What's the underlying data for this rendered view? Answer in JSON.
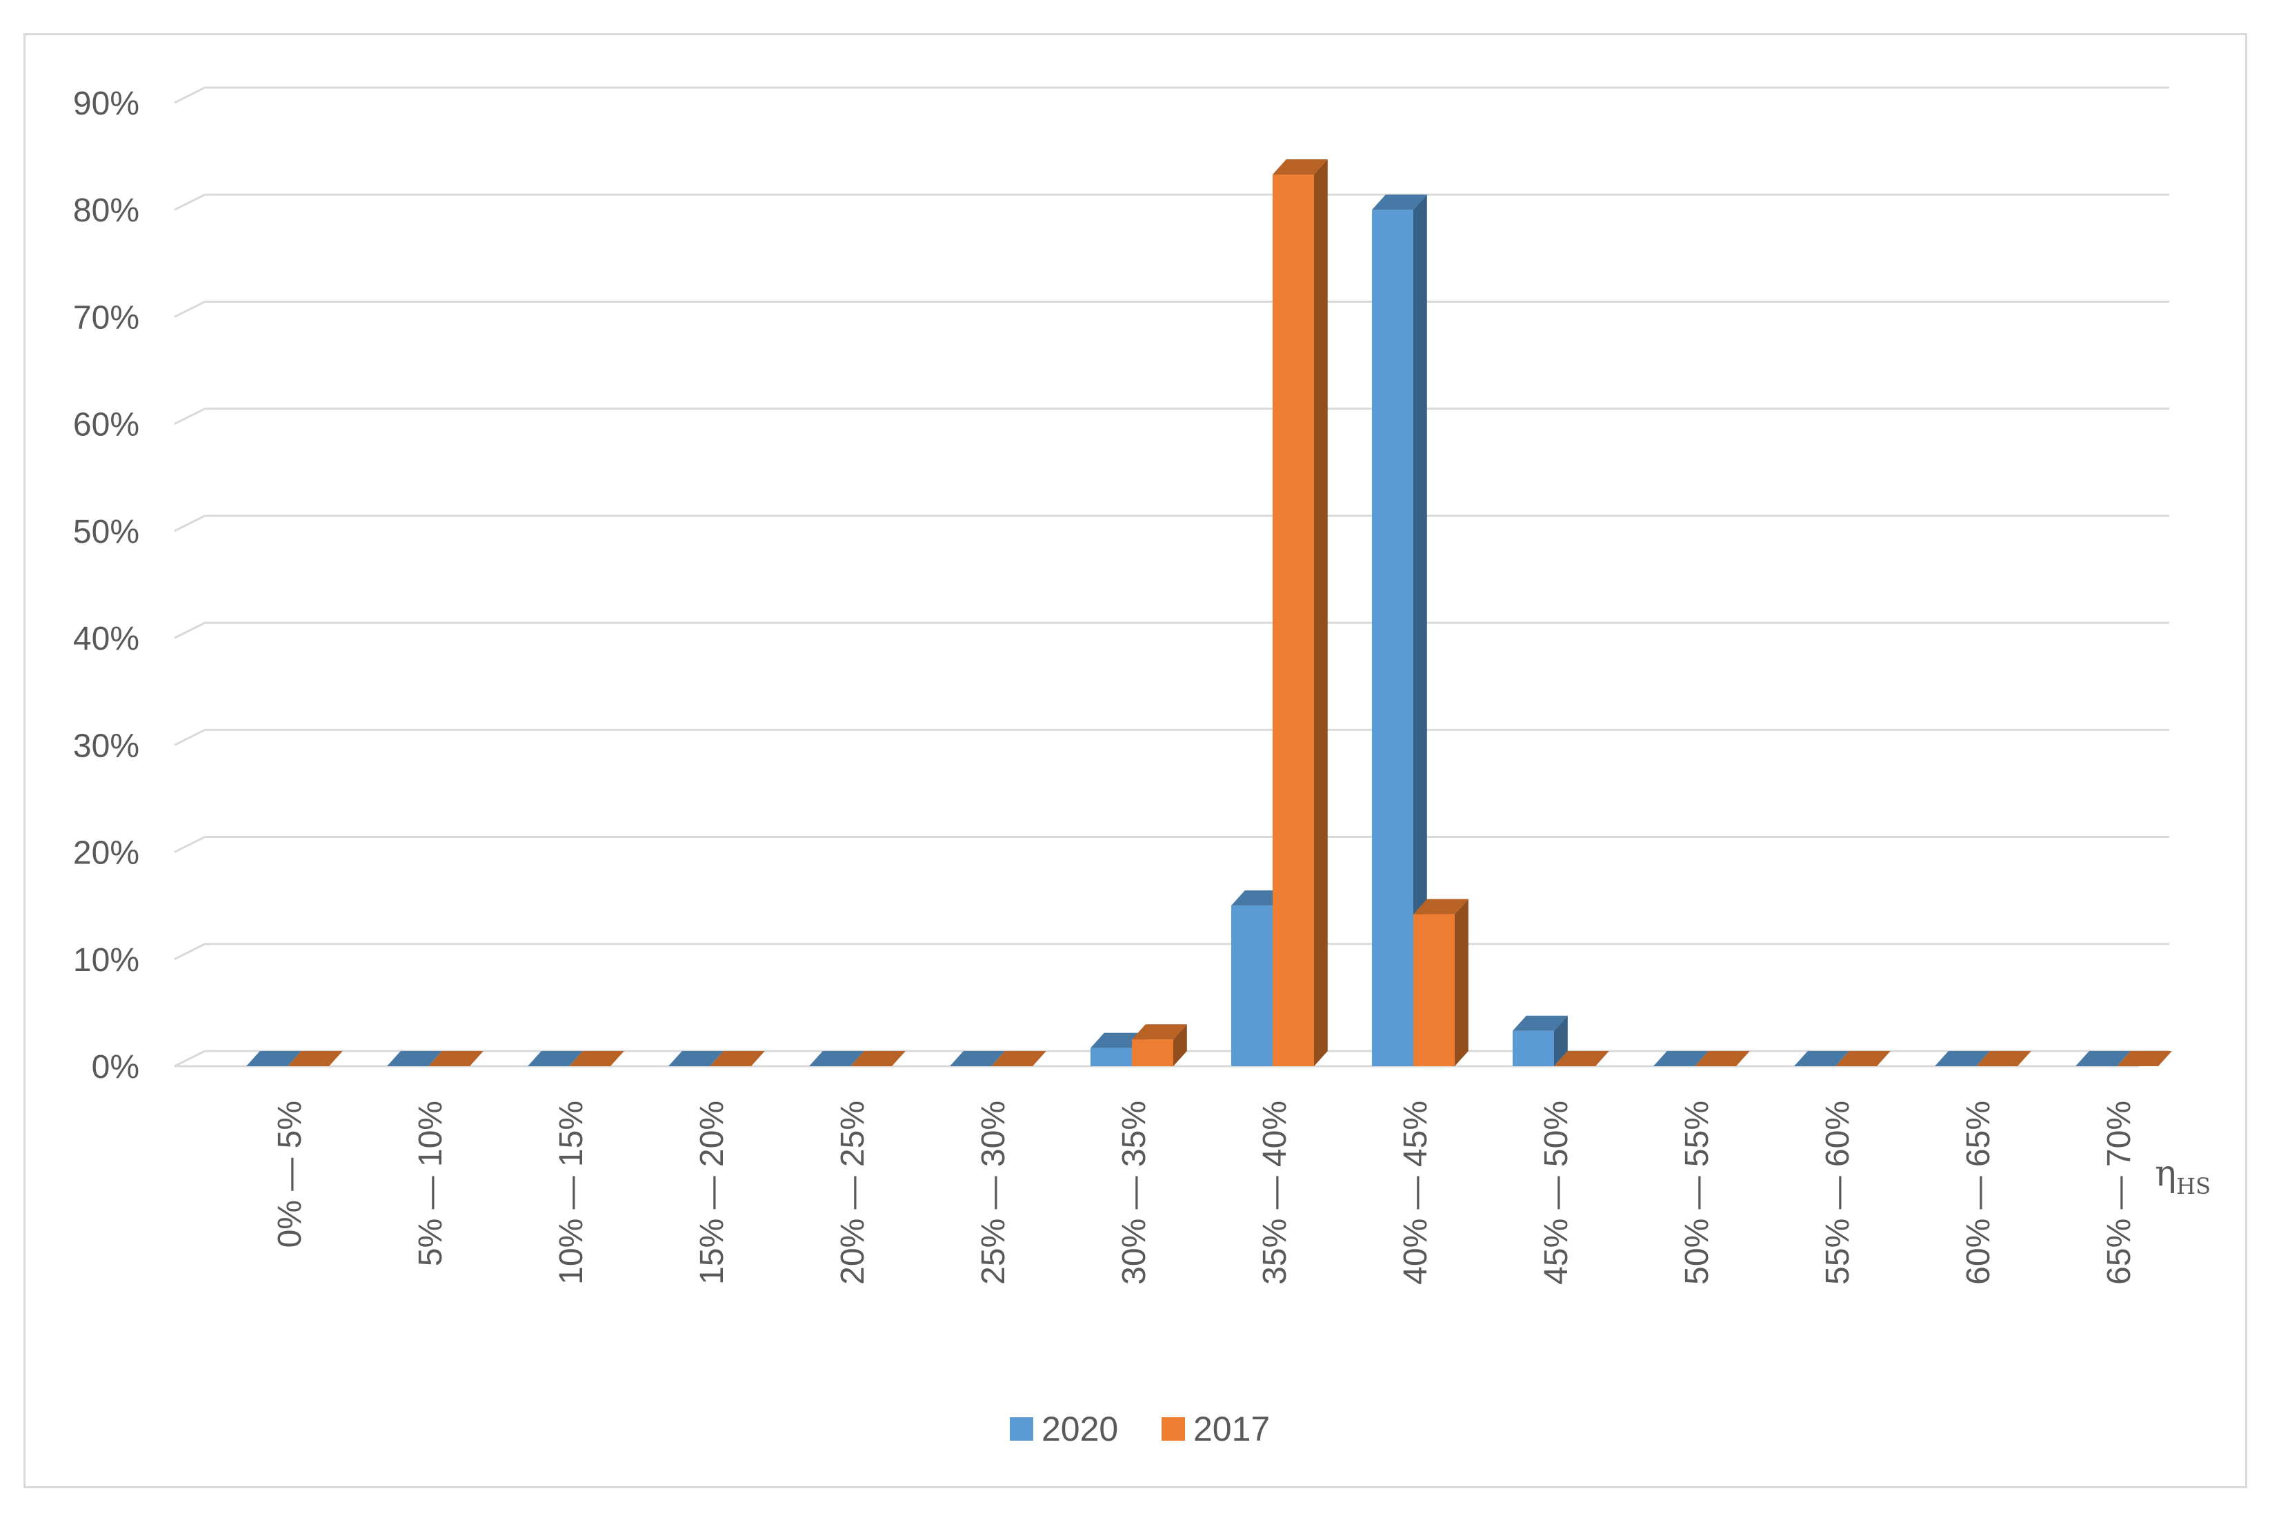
{
  "chart_data": {
    "type": "bar",
    "style": "3d-clustered-column",
    "categories": [
      "0% — 5%",
      "5% — 10%",
      "10% — 15%",
      "15% — 20%",
      "20% — 25%",
      "25% — 30%",
      "30% — 35%",
      "35% — 40%",
      "40% — 45%",
      "45% — 50%",
      "50% — 55%",
      "55% — 60%",
      "60% — 65%",
      "65% — 70%"
    ],
    "series": [
      {
        "name": "2020",
        "color": "#5B9BD5",
        "values": [
          0,
          0,
          0,
          0,
          0,
          0,
          1.7,
          15,
          80,
          3.3,
          0,
          0,
          0,
          0
        ]
      },
      {
        "name": "2017",
        "color": "#ED7D31",
        "values": [
          0,
          0,
          0,
          0,
          0,
          0,
          2.5,
          83.3,
          14.2,
          0,
          0,
          0,
          0,
          0
        ]
      }
    ],
    "xlabel": {
      "main": "η",
      "subscript": "HS"
    },
    "ylabel": "",
    "ylim": [
      0,
      90
    ],
    "yticks": [
      0,
      10,
      20,
      30,
      40,
      50,
      60,
      70,
      80,
      90
    ],
    "ytick_labels": [
      "0%",
      "10%",
      "20%",
      "30%",
      "40%",
      "50%",
      "60%",
      "70%",
      "80%",
      "90%"
    ],
    "grid": true,
    "legend": "bottom-center"
  }
}
